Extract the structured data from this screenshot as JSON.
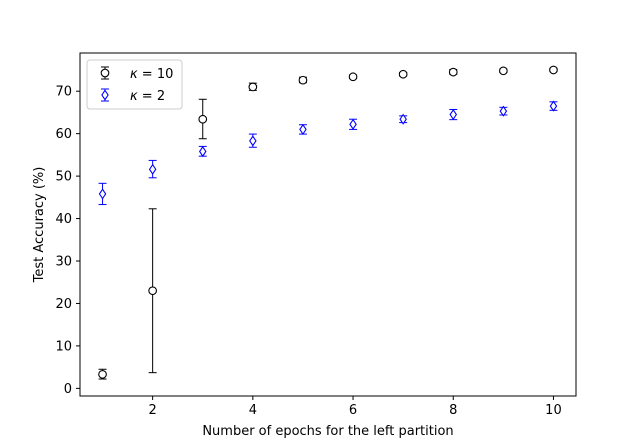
{
  "chart_data": {
    "type": "scatter",
    "xlabel": "Number of epochs for the left partition",
    "ylabel": "Test Accuracy (%)",
    "xlim": [
      0.55,
      10.45
    ],
    "ylim": [
      -1.8,
      79.0
    ],
    "xticks": [
      2,
      4,
      6,
      8,
      10
    ],
    "yticks": [
      0,
      10,
      20,
      30,
      40,
      50,
      60,
      70
    ],
    "grid": false,
    "legend_position": "upper left",
    "series": [
      {
        "name": "κ = 10",
        "color": "#000000",
        "marker": "circle",
        "x": [
          1,
          2,
          3,
          4,
          5,
          6,
          7,
          8,
          9,
          10
        ],
        "y": [
          3.3,
          23.0,
          63.4,
          71.0,
          72.6,
          73.4,
          74.0,
          74.5,
          74.8,
          75.0
        ],
        "yerr_low": [
          2.2,
          3.7,
          58.8,
          70.2,
          72.0,
          73.0,
          73.6,
          74.0,
          74.4,
          74.6
        ],
        "yerr_high": [
          4.5,
          42.3,
          68.1,
          71.9,
          73.3,
          73.8,
          74.4,
          75.1,
          75.2,
          75.4
        ]
      },
      {
        "name": "κ = 2",
        "color": "#0000ff",
        "marker": "diamond",
        "x": [
          1,
          2,
          3,
          4,
          5,
          6,
          7,
          8,
          9,
          10
        ],
        "y": [
          45.8,
          51.6,
          55.8,
          58.3,
          61.0,
          62.2,
          63.4,
          64.5,
          65.3,
          66.5
        ],
        "yerr_low": [
          43.3,
          49.6,
          54.7,
          56.8,
          59.9,
          61.0,
          62.6,
          63.3,
          64.4,
          65.5
        ],
        "yerr_high": [
          48.3,
          53.7,
          57.0,
          59.9,
          62.1,
          63.4,
          64.2,
          65.7,
          66.2,
          67.5
        ]
      }
    ],
    "legend": {
      "entries": [
        {
          "label_main": "κ",
          "label_rest": " = 10",
          "color": "#000000",
          "marker": "circle"
        },
        {
          "label_main": "κ",
          "label_rest": " = 2",
          "color": "#0000ff",
          "marker": "diamond"
        }
      ]
    }
  }
}
